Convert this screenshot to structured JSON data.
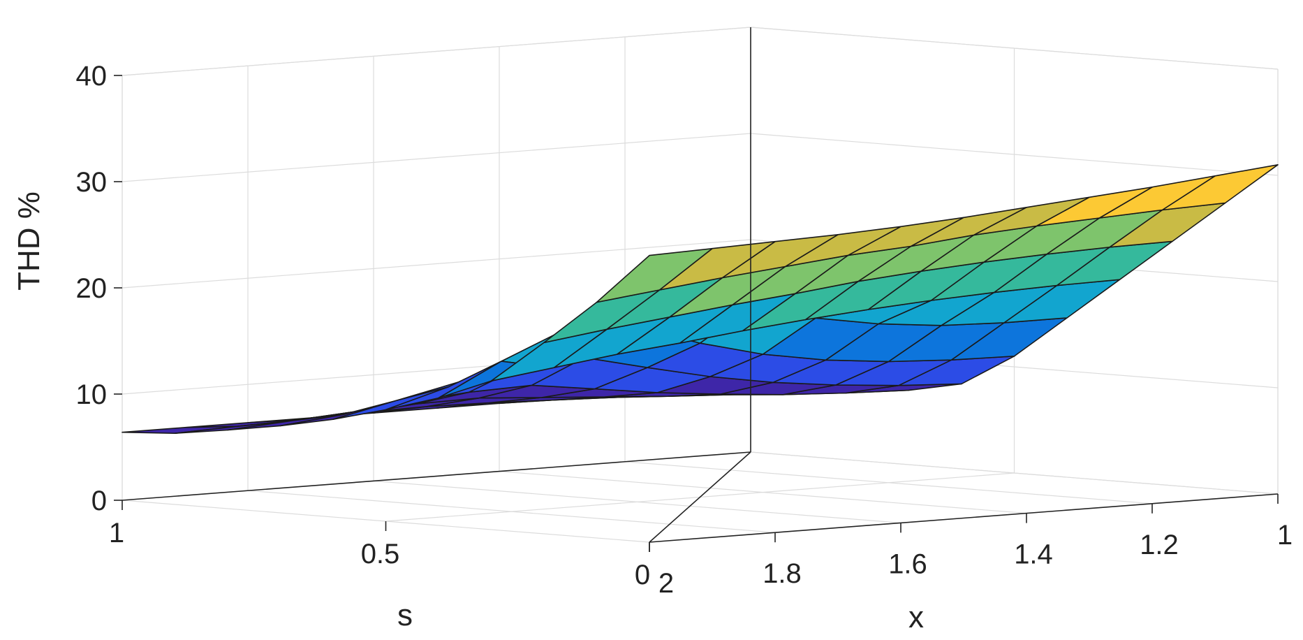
{
  "chart_data": {
    "type": "surface",
    "title": "",
    "xlabel": "x",
    "ylabel": "s",
    "zlabel": "THD %",
    "x_ticks": [
      "2",
      "1.8",
      "1.6",
      "1.4",
      "1.2",
      "1"
    ],
    "s_ticks": [
      "1",
      "0.5",
      "0"
    ],
    "z_ticks": [
      "0",
      "10",
      "20",
      "30",
      "40"
    ],
    "xlim": [
      1,
      2
    ],
    "slim": [
      0,
      1
    ],
    "zlim": [
      0,
      40
    ],
    "grid": true,
    "colormap": [
      "#3e26a8",
      "#2c4ce6",
      "#0d75dc",
      "#12a5cf",
      "#35b99c",
      "#7ec46c",
      "#c9bb45",
      "#fcc934"
    ],
    "x": [
      1.0,
      1.1,
      1.2,
      1.3,
      1.4,
      1.5,
      1.6,
      1.7,
      1.8,
      1.9,
      2.0
    ],
    "s": [
      0.0,
      0.1,
      0.2,
      0.3,
      0.4,
      0.5,
      0.6,
      0.7,
      0.8,
      0.9,
      1.0
    ],
    "z_rows_by_s": [
      [
        31.0,
        30.4,
        29.8,
        29.3,
        28.8,
        28.3,
        27.9,
        27.6,
        27.4,
        27.2,
        27.0
      ],
      [
        27.0,
        26.8,
        26.5,
        26.2,
        25.8,
        25.2,
        24.8,
        24.2,
        23.6,
        22.9,
        22.2
      ],
      [
        23.0,
        22.9,
        22.7,
        22.4,
        22.0,
        21.5,
        20.8,
        20.2,
        19.5,
        18.8,
        18.0
      ],
      [
        19.0,
        18.9,
        18.7,
        18.4,
        18.0,
        17.5,
        16.9,
        16.2,
        15.6,
        14.8,
        14.0
      ],
      [
        15.0,
        15.0,
        15.2,
        15.8,
        16.8,
        18.5,
        21.0,
        19.5,
        17.5,
        15.0,
        12.0
      ],
      [
        11.0,
        11.1,
        11.4,
        12.0,
        13.0,
        14.5,
        16.5,
        15.5,
        14.0,
        12.2,
        10.5
      ],
      [
        8.0,
        8.3,
        8.8,
        9.5,
        10.5,
        11.8,
        13.2,
        12.8,
        11.8,
        10.5,
        9.2
      ],
      [
        7.0,
        7.2,
        7.5,
        8.0,
        8.6,
        9.4,
        10.2,
        10.0,
        9.5,
        8.8,
        8.2
      ],
      [
        6.8,
        6.9,
        7.1,
        7.4,
        7.8,
        8.2,
        8.6,
        8.5,
        8.2,
        7.8,
        7.4
      ],
      [
        6.5,
        6.6,
        6.7,
        6.9,
        7.1,
        7.3,
        7.4,
        7.3,
        7.1,
        6.9,
        6.7
      ],
      [
        6.4,
        6.4,
        6.4,
        6.4,
        6.4,
        6.4,
        6.4,
        6.4,
        6.4,
        6.4,
        6.4
      ]
    ]
  }
}
